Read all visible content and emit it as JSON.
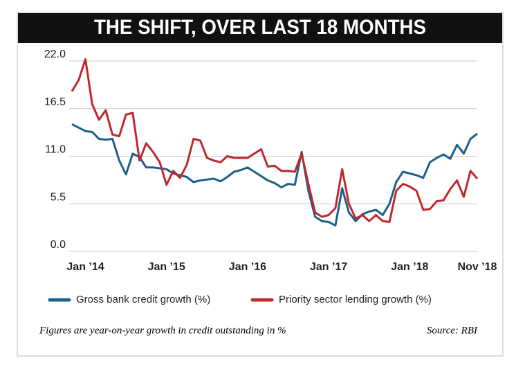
{
  "chart_data": {
    "type": "line",
    "title": "THE SHIFT, OVER LAST 18 MONTHS",
    "categories": [
      null,
      null,
      "Jan ’14",
      null,
      null,
      null,
      null,
      null,
      null,
      null,
      null,
      null,
      null,
      null,
      "Jan ’15",
      null,
      null,
      null,
      null,
      null,
      null,
      null,
      null,
      null,
      null,
      null,
      "Jan ’16",
      null,
      null,
      null,
      null,
      null,
      null,
      null,
      null,
      null,
      null,
      null,
      "Jan ’17",
      null,
      null,
      null,
      null,
      null,
      null,
      null,
      null,
      null,
      null,
      null,
      "Jan ’18",
      null,
      null,
      null,
      null,
      null,
      null,
      null,
      null,
      null,
      "Nov ’18"
    ],
    "series": [
      {
        "name": "Gross bank credit growth (%)",
        "color": "#1f5f8b",
        "values": [
          14.7,
          14.3,
          13.9,
          13.8,
          13.0,
          12.9,
          13.0,
          10.5,
          8.9,
          11.3,
          10.9,
          9.7,
          9.7,
          9.6,
          9.5,
          9.0,
          8.8,
          8.6,
          8.0,
          8.2,
          8.3,
          8.4,
          8.1,
          8.6,
          9.2,
          9.4,
          9.7,
          9.2,
          8.7,
          8.2,
          7.9,
          7.4,
          7.8,
          7.7,
          11.5,
          7.0,
          4.0,
          3.5,
          3.4,
          3.0,
          7.3,
          4.5,
          3.5,
          4.3,
          4.6,
          4.8,
          4.2,
          5.5,
          8.0,
          9.2,
          9.0,
          8.8,
          8.5,
          10.3,
          10.8,
          11.2,
          10.7,
          12.3,
          11.3,
          13.0,
          13.6
        ]
      },
      {
        "name": "Priority sector lending growth (%)",
        "color": "#c0282d",
        "values": [
          18.5,
          19.8,
          22.2,
          17.0,
          15.2,
          16.3,
          13.5,
          13.3,
          15.8,
          16.0,
          10.5,
          12.5,
          11.5,
          10.3,
          7.7,
          9.3,
          8.5,
          10.0,
          13.0,
          12.8,
          10.8,
          10.5,
          10.3,
          11.0,
          10.8,
          10.8,
          10.8,
          11.3,
          11.8,
          9.8,
          9.9,
          9.3,
          9.3,
          9.2,
          11.3,
          7.8,
          4.5,
          4.0,
          4.2,
          5.0,
          9.5,
          5.5,
          3.8,
          4.2,
          3.5,
          4.2,
          3.5,
          3.4,
          7.0,
          7.8,
          7.5,
          7.0,
          4.8,
          4.9,
          5.8,
          5.9,
          7.2,
          8.2,
          6.3,
          9.3,
          8.4
        ]
      }
    ],
    "ylim": [
      0,
      22
    ],
    "yticks": [
      {
        "value": 0,
        "label": "0.0"
      },
      5.5,
      {
        "value": 11,
        "label": "11.0"
      },
      16.5,
      {
        "value": 22,
        "label": "22.0"
      }
    ],
    "grid": true,
    "note": "Figures are year-on-year growth in credit outstanding in %",
    "source": "Source: RBI"
  }
}
